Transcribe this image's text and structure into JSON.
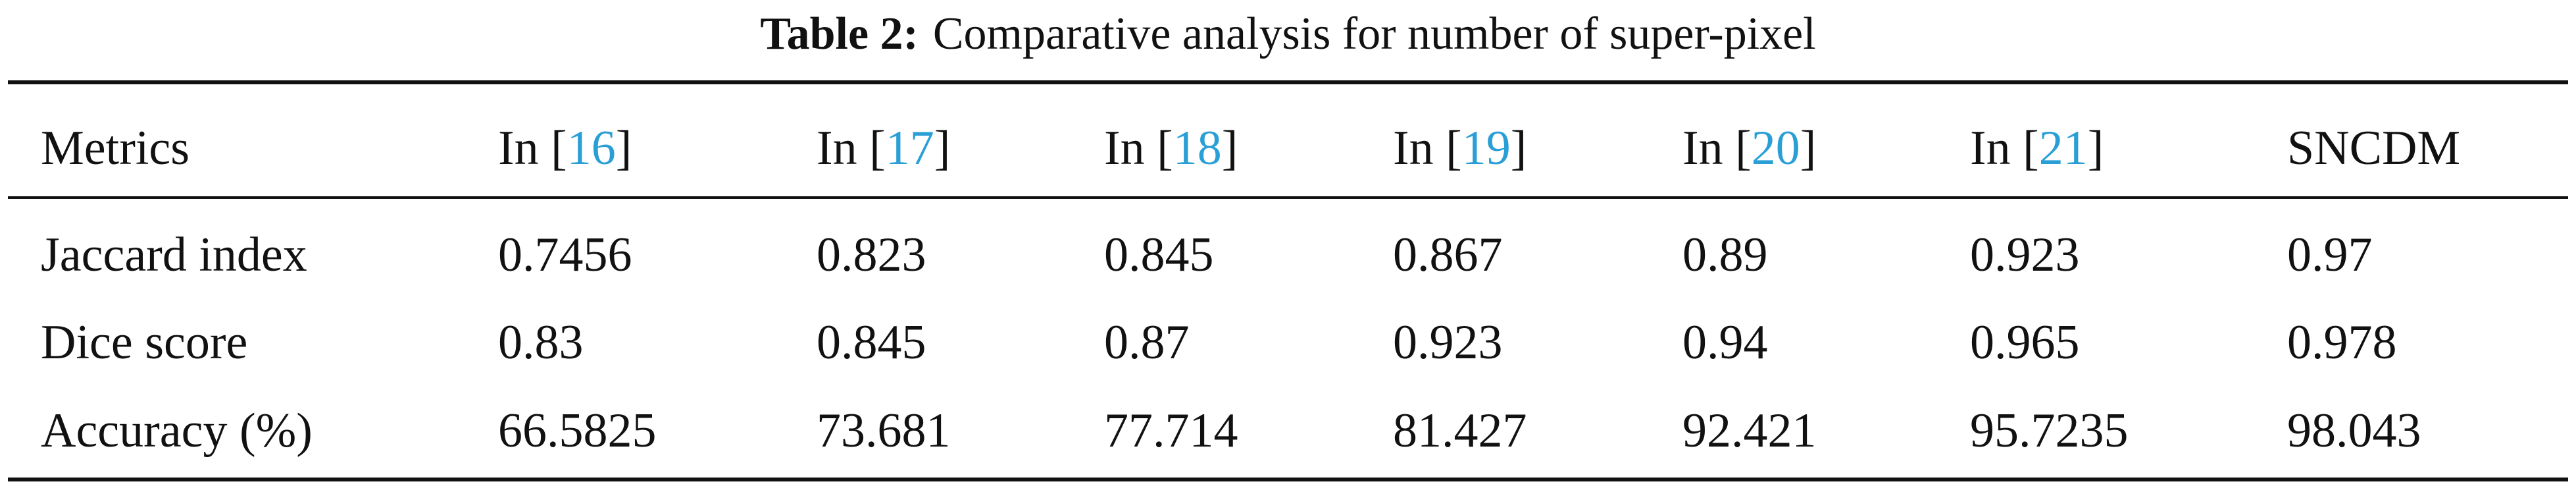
{
  "caption": {
    "label": "Table 2:",
    "text": "Comparative analysis for number of super-pixel"
  },
  "table": {
    "header": [
      {
        "text": "Metrics"
      },
      {
        "prefix": "In [",
        "ref": "16",
        "suffix": "]"
      },
      {
        "prefix": "In [",
        "ref": "17",
        "suffix": "]"
      },
      {
        "prefix": "In [",
        "ref": "18",
        "suffix": "]"
      },
      {
        "prefix": "In [",
        "ref": "19",
        "suffix": "]"
      },
      {
        "prefix": "In [",
        "ref": "20",
        "suffix": "]"
      },
      {
        "prefix": "In [",
        "ref": "21",
        "suffix": "]"
      },
      {
        "text": "SNCDM"
      }
    ],
    "rows": [
      [
        "Jaccard index",
        "0.7456",
        "0.823",
        "0.845",
        "0.867",
        "0.89",
        "0.923",
        "0.97"
      ],
      [
        "Dice score",
        "0.83",
        "0.845",
        "0.87",
        "0.923",
        "0.94",
        "0.965",
        "0.978"
      ],
      [
        "Accuracy (%)",
        "66.5825",
        "73.681",
        "77.714",
        "81.427",
        "92.421",
        "95.7235",
        "98.043"
      ]
    ]
  }
}
